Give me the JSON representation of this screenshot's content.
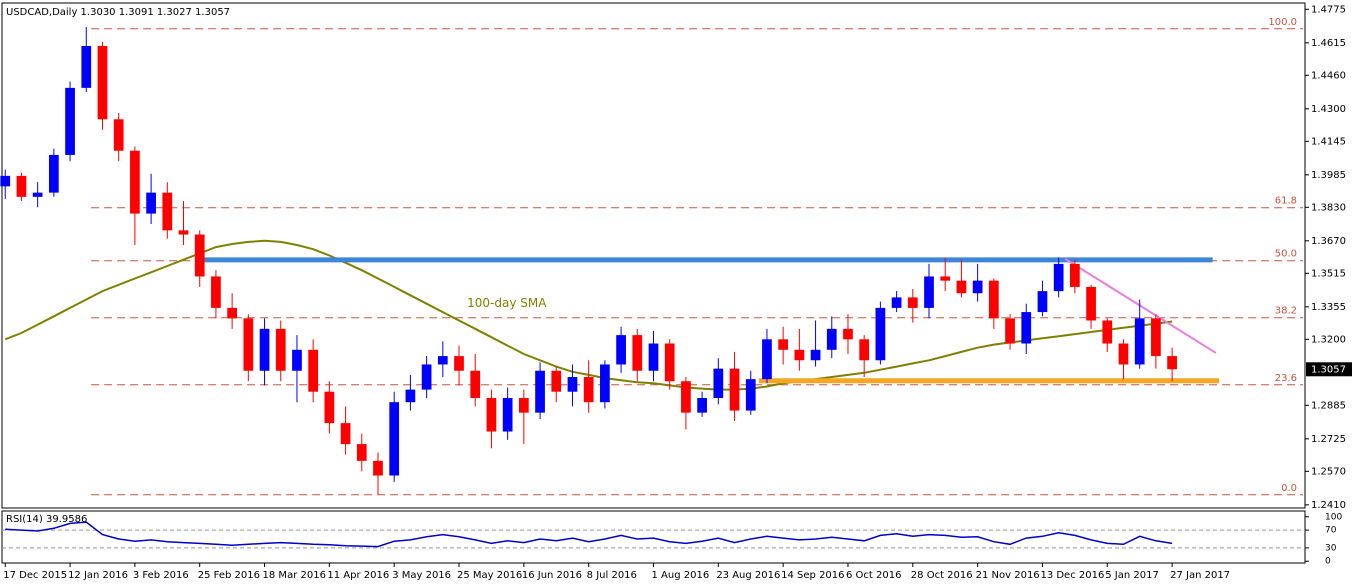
{
  "chart_data": {
    "type": "candlestick",
    "title": "USDCAD,Daily  1.3030 1.3091 1.3027 1.3057",
    "categories": [
      "17 Dec 2015",
      null,
      null,
      null,
      "12 Jan 2016",
      null,
      null,
      null,
      "3 Feb 2016",
      null,
      null,
      null,
      "25 Feb 2016",
      null,
      null,
      null,
      "18 Mar 2016",
      null,
      null,
      null,
      "11 Apr 2016",
      null,
      null,
      null,
      "3 May 2016",
      null,
      null,
      null,
      "25 May 2016",
      null,
      null,
      null,
      "16 Jun 2016",
      null,
      null,
      null,
      "8 Jul 2016",
      null,
      null,
      null,
      "1 Aug 2016",
      null,
      null,
      null,
      "23 Aug 2016",
      null,
      null,
      null,
      "14 Sep 2016",
      null,
      null,
      null,
      "6 Oct 2016",
      null,
      null,
      null,
      "28 Oct 2016",
      null,
      null,
      null,
      "21 Nov 2016",
      null,
      null,
      null,
      "13 Dec 2016",
      null,
      null,
      null,
      "5 Jan 2017",
      null,
      null,
      null,
      "27 Jan 2017"
    ],
    "open": [
      1.393,
      1.398,
      1.388,
      1.39,
      1.408,
      1.44,
      1.46,
      1.425,
      1.41,
      1.38,
      1.39,
      1.372,
      1.37,
      1.35,
      1.335,
      1.33,
      1.305,
      1.325,
      1.305,
      1.315,
      1.295,
      1.28,
      1.27,
      1.262,
      1.255,
      1.29,
      1.296,
      1.308,
      1.312,
      1.305,
      1.292,
      1.276,
      1.292,
      1.285,
      1.305,
      1.295,
      1.302,
      1.29,
      1.308,
      1.322,
      1.305,
      1.318,
      1.3,
      1.285,
      1.292,
      1.306,
      1.286,
      1.301,
      1.32,
      1.315,
      1.31,
      1.315,
      1.325,
      1.32,
      1.31,
      1.335,
      1.34,
      1.335,
      1.35,
      1.348,
      1.342,
      1.348,
      1.33,
      1.318,
      1.333,
      1.343,
      1.356,
      1.345,
      1.329,
      1.318,
      1.308,
      1.33,
      1.312
    ],
    "high": [
      1.401,
      1.3995,
      1.395,
      1.411,
      1.443,
      1.469,
      1.462,
      1.428,
      1.412,
      1.399,
      1.395,
      1.386,
      1.372,
      1.353,
      1.342,
      1.332,
      1.33,
      1.329,
      1.322,
      1.32,
      1.3,
      1.288,
      1.275,
      1.266,
      1.295,
      1.303,
      1.312,
      1.319,
      1.317,
      1.313,
      1.296,
      1.297,
      1.296,
      1.309,
      1.307,
      1.308,
      1.31,
      1.31,
      1.326,
      1.325,
      1.324,
      1.32,
      1.302,
      1.295,
      1.311,
      1.314,
      1.305,
      1.325,
      1.326,
      1.325,
      1.329,
      1.331,
      1.332,
      1.322,
      1.338,
      1.343,
      1.344,
      1.356,
      1.359,
      1.358,
      1.356,
      1.349,
      1.332,
      1.337,
      1.348,
      1.359,
      1.358,
      1.346,
      1.33,
      1.32,
      1.339,
      1.332,
      1.316
    ],
    "low": [
      1.387,
      1.386,
      1.383,
      1.388,
      1.405,
      1.438,
      1.42,
      1.405,
      1.365,
      1.375,
      1.368,
      1.365,
      1.345,
      1.33,
      1.325,
      1.3,
      1.298,
      1.3,
      1.29,
      1.29,
      1.275,
      1.265,
      1.257,
      1.246,
      1.252,
      1.286,
      1.292,
      1.302,
      1.298,
      1.288,
      1.268,
      1.272,
      1.27,
      1.282,
      1.29,
      1.288,
      1.285,
      1.287,
      1.304,
      1.3,
      1.3,
      1.296,
      1.277,
      1.283,
      1.289,
      1.281,
      1.284,
      1.299,
      1.308,
      1.305,
      1.307,
      1.311,
      1.313,
      1.302,
      1.308,
      1.333,
      1.328,
      1.33,
      1.343,
      1.34,
      1.338,
      1.325,
      1.315,
      1.313,
      1.331,
      1.34,
      1.342,
      1.325,
      1.314,
      1.301,
      1.306,
      1.306,
      1.3
    ],
    "close": [
      1.398,
      1.388,
      1.39,
      1.408,
      1.44,
      1.46,
      1.425,
      1.41,
      1.38,
      1.39,
      1.372,
      1.37,
      1.35,
      1.335,
      1.33,
      1.305,
      1.325,
      1.305,
      1.315,
      1.295,
      1.28,
      1.27,
      1.262,
      1.255,
      1.29,
      1.296,
      1.308,
      1.312,
      1.305,
      1.292,
      1.276,
      1.292,
      1.285,
      1.305,
      1.295,
      1.302,
      1.29,
      1.308,
      1.322,
      1.305,
      1.318,
      1.3,
      1.285,
      1.292,
      1.306,
      1.286,
      1.301,
      1.32,
      1.315,
      1.31,
      1.315,
      1.325,
      1.32,
      1.31,
      1.335,
      1.34,
      1.335,
      1.35,
      1.348,
      1.342,
      1.348,
      1.33,
      1.318,
      1.333,
      1.343,
      1.356,
      1.345,
      1.329,
      1.318,
      1.308,
      1.33,
      1.312,
      1.3057
    ],
    "up_color": "#0000ff",
    "down_color": "#ff0000",
    "sma": {
      "name": "100-day SMA",
      "color": "#808000",
      "values": [
        1.32,
        1.323,
        1.327,
        1.331,
        1.335,
        1.339,
        1.343,
        1.346,
        1.349,
        1.352,
        1.355,
        1.358,
        1.361,
        1.364,
        1.3655,
        1.3665,
        1.367,
        1.3665,
        1.365,
        1.363,
        1.36,
        1.3565,
        1.353,
        1.349,
        1.345,
        1.341,
        1.337,
        1.333,
        1.329,
        1.325,
        1.321,
        1.317,
        1.313,
        1.31,
        1.307,
        1.3045,
        1.303,
        1.3015,
        1.3005,
        1.2995,
        1.299,
        1.298,
        1.297,
        1.2965,
        1.296,
        1.296,
        1.2965,
        1.2975,
        1.299,
        1.3,
        1.301,
        1.302,
        1.303,
        1.304,
        1.3055,
        1.307,
        1.3085,
        1.31,
        1.312,
        1.314,
        1.316,
        1.3175,
        1.3185,
        1.3195,
        1.3205,
        1.3215,
        1.3225,
        1.3235,
        1.3245,
        1.3255,
        1.3265,
        1.3275,
        1.3285
      ]
    },
    "xlim": [
      -0.2,
      80.2
    ],
    "ylim": [
      1.2395,
      1.4805
    ],
    "yticks": [
      {
        "value": 1.4775,
        "label": "1.4775"
      },
      {
        "value": 1.4615,
        "label": "1.4615"
      },
      {
        "value": 1.446,
        "label": "1.4460"
      },
      {
        "value": 1.43,
        "label": "1.4300"
      },
      {
        "value": 1.4145,
        "label": "1.4145"
      },
      {
        "value": 1.3985,
        "label": "1.3985"
      },
      {
        "value": 1.383,
        "label": "1.3830"
      },
      {
        "value": 1.367,
        "label": "1.3670"
      },
      {
        "value": 1.3515,
        "label": "1.3515"
      },
      {
        "value": 1.3355,
        "label": "1.3355"
      },
      {
        "value": 1.32,
        "label": "1.3200"
      },
      {
        "value": 1.2885,
        "label": "1.2885"
      },
      {
        "value": 1.2725,
        "label": "1.2725"
      },
      {
        "value": 1.257,
        "label": "1.2570"
      },
      {
        "value": 1.241,
        "label": "1.2410"
      }
    ],
    "last_price": {
      "value": 1.3057,
      "label": "1.3057"
    },
    "fib_color": "#c8553d",
    "fib_levels": [
      {
        "ratio": "100.0",
        "price": 1.4682
      },
      {
        "ratio": "61.8",
        "price": 1.3828
      },
      {
        "ratio": "50.0",
        "price": 1.3575
      },
      {
        "ratio": "38.2",
        "price": 1.3303
      },
      {
        "ratio": "23.6",
        "price": 1.2983
      },
      {
        "ratio": "0.0",
        "price": 1.2458
      }
    ],
    "lines": [
      {
        "color": "#3d85d8",
        "x0": 11.9,
        "y0": 1.3579,
        "x1": 74.5,
        "y1": 1.3579
      },
      {
        "color": "#f5a623",
        "x0": 46.5,
        "y0": 1.3002,
        "x1": 74.9,
        "y1": 1.3002
      },
      {
        "color": "#e87de0",
        "x0": 65.4,
        "y0": 1.3584,
        "x1": 74.7,
        "y1": 1.3135
      }
    ],
    "rsi": {
      "label": "RSI(14) 39.9586",
      "color": "#0000cc",
      "ylim": [
        -4,
        113
      ],
      "yticks": [
        0,
        30,
        70,
        100
      ],
      "levels": [
        30,
        70
      ],
      "values": [
        72,
        70,
        68,
        74,
        85,
        88,
        60,
        50,
        45,
        48,
        44,
        42,
        40,
        38,
        36,
        38,
        40,
        42,
        40,
        38,
        37,
        35,
        34,
        33,
        45,
        48,
        55,
        60,
        55,
        48,
        40,
        46,
        42,
        50,
        46,
        52,
        44,
        50,
        58,
        50,
        52,
        44,
        40,
        45,
        52,
        42,
        50,
        56,
        52,
        48,
        50,
        54,
        50,
        46,
        58,
        62,
        56,
        60,
        58,
        54,
        55,
        44,
        38,
        52,
        56,
        64,
        58,
        48,
        40,
        38,
        56,
        46,
        40
      ]
    }
  }
}
